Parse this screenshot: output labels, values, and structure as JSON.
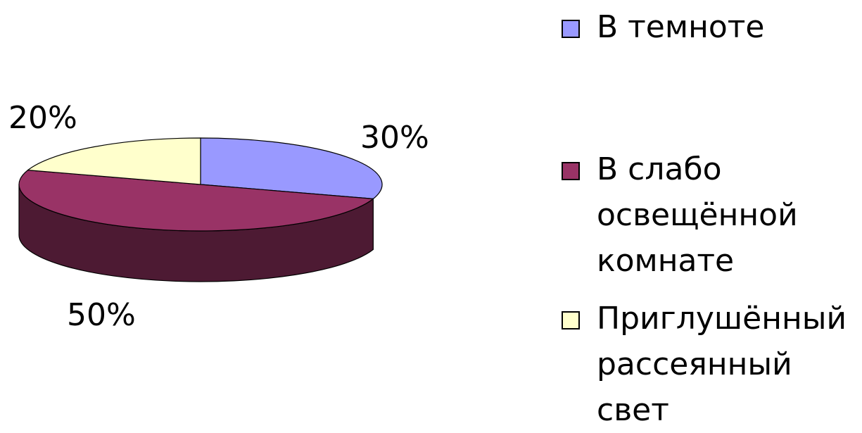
{
  "chart_data": {
    "type": "pie",
    "three_d": true,
    "categories": [
      "В темноте",
      "В слабо освещённой комнате",
      "Приглушённый рассеянный свет"
    ],
    "values": [
      30,
      50,
      20
    ],
    "value_labels": [
      "30%",
      "50%",
      "20%"
    ],
    "colors": [
      "#9999ff",
      "#993366",
      "#ffffcc"
    ],
    "legend": "right"
  }
}
